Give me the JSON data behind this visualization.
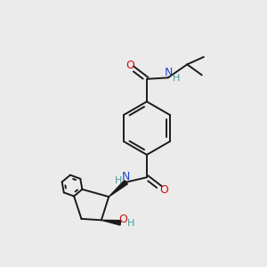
{
  "background_color": "#ebebeb",
  "bond_color": "#1a1a1a",
  "N_color": "#2244cc",
  "O_color": "#cc1111",
  "H_color": "#4a9a9a",
  "figsize": [
    3.0,
    3.0
  ],
  "dpi": 100,
  "xlim": [
    0,
    10
  ],
  "ylim": [
    0,
    10
  ]
}
